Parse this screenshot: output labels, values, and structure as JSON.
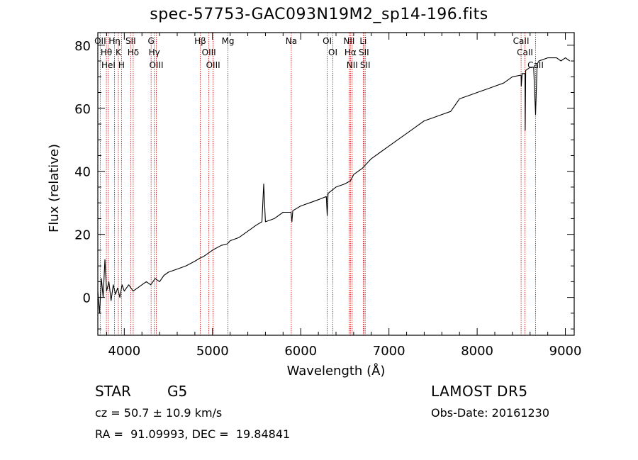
{
  "title": "spec-57753-GAC093N19M2_sp14-196.fits",
  "info": {
    "object_class": "STAR",
    "subclass": "G5",
    "survey": "LAMOST DR5",
    "cz": "cz = 50.7 ± 10.9 km/s",
    "obs_date": "Obs-Date: 20161230",
    "radec": "RA =  91.09993, DEC =  19.84841"
  },
  "colors": {
    "spectrum": "#000000",
    "lines": "#cc0000",
    "axes": "#000000"
  },
  "chart_data": {
    "type": "line",
    "title": "spec-57753-GAC093N19M2_sp14-196.fits",
    "xlabel": "Wavelength (Å)",
    "ylabel": "Flux (relative)",
    "xlim": [
      3700,
      9100
    ],
    "ylim": [
      -12,
      84
    ],
    "xticks": [
      4000,
      5000,
      6000,
      7000,
      8000,
      9000
    ],
    "yticks": [
      0,
      20,
      40,
      60,
      80
    ],
    "grid": false,
    "series": [
      {
        "points": [
          [
            3700,
            2
          ],
          [
            3720,
            -5
          ],
          [
            3740,
            6
          ],
          [
            3760,
            0
          ],
          [
            3780,
            12
          ],
          [
            3800,
            2
          ],
          [
            3825,
            5
          ],
          [
            3850,
            -1
          ],
          [
            3875,
            4
          ],
          [
            3900,
            1
          ],
          [
            3925,
            3
          ],
          [
            3950,
            0
          ],
          [
            3975,
            4
          ],
          [
            4000,
            2
          ],
          [
            4050,
            4
          ],
          [
            4100,
            2
          ],
          [
            4150,
            3
          ],
          [
            4200,
            4
          ],
          [
            4250,
            5
          ],
          [
            4300,
            4
          ],
          [
            4350,
            6
          ],
          [
            4400,
            5
          ],
          [
            4450,
            7
          ],
          [
            4500,
            8
          ],
          [
            4600,
            9
          ],
          [
            4700,
            10
          ],
          [
            4800,
            11.5
          ],
          [
            4860,
            12.5
          ],
          [
            4900,
            13
          ],
          [
            5000,
            15
          ],
          [
            5100,
            16.5
          ],
          [
            5170,
            17
          ],
          [
            5200,
            18
          ],
          [
            5300,
            19
          ],
          [
            5400,
            21
          ],
          [
            5500,
            23
          ],
          [
            5560,
            24
          ],
          [
            5580,
            36
          ],
          [
            5600,
            24
          ],
          [
            5700,
            25
          ],
          [
            5800,
            27
          ],
          [
            5890,
            27
          ],
          [
            5900,
            24
          ],
          [
            5910,
            27.5
          ],
          [
            6000,
            29
          ],
          [
            6100,
            30
          ],
          [
            6200,
            31
          ],
          [
            6290,
            32
          ],
          [
            6300,
            26
          ],
          [
            6310,
            33
          ],
          [
            6400,
            35
          ],
          [
            6500,
            36
          ],
          [
            6563,
            37
          ],
          [
            6600,
            39
          ],
          [
            6700,
            41
          ],
          [
            6800,
            44
          ],
          [
            6900,
            46
          ],
          [
            7000,
            48
          ],
          [
            7100,
            50
          ],
          [
            7200,
            52
          ],
          [
            7300,
            54
          ],
          [
            7400,
            56
          ],
          [
            7500,
            57
          ],
          [
            7600,
            58
          ],
          [
            7700,
            59
          ],
          [
            7750,
            61
          ],
          [
            7800,
            63
          ],
          [
            7900,
            64
          ],
          [
            8000,
            65
          ],
          [
            8100,
            66
          ],
          [
            8200,
            67
          ],
          [
            8300,
            68
          ],
          [
            8400,
            70
          ],
          [
            8498,
            70.5
          ],
          [
            8500,
            67
          ],
          [
            8510,
            71
          ],
          [
            8542,
            71
          ],
          [
            8545,
            53
          ],
          [
            8550,
            72
          ],
          [
            8600,
            73
          ],
          [
            8640,
            73
          ],
          [
            8662,
            58
          ],
          [
            8680,
            74
          ],
          [
            8700,
            75
          ],
          [
            8800,
            76
          ],
          [
            8900,
            76
          ],
          [
            8950,
            75
          ],
          [
            9000,
            76
          ],
          [
            9050,
            75
          ]
        ]
      }
    ],
    "line_markers": [
      {
        "wave": 3727,
        "label": "OII"
      },
      {
        "wave": 3797,
        "label": "Hθ"
      },
      {
        "wave": 3820,
        "label": "HeI"
      },
      {
        "wave": 3889,
        "label": "Hη"
      },
      {
        "wave": 3933,
        "label": "K"
      },
      {
        "wave": 3968,
        "label": "H"
      },
      {
        "wave": 4072,
        "label": "SII"
      },
      {
        "wave": 4101,
        "label": "Hδ"
      },
      {
        "wave": 4304,
        "label": "G"
      },
      {
        "wave": 4340,
        "label": "Hγ"
      },
      {
        "wave": 4363,
        "label": "OIII"
      },
      {
        "wave": 4861,
        "label": "Hβ"
      },
      {
        "wave": 4959,
        "label": "OIII"
      },
      {
        "wave": 5007,
        "label": "OIII"
      },
      {
        "wave": 5175,
        "label": "Mg"
      },
      {
        "wave": 5893,
        "label": "Na"
      },
      {
        "wave": 6300,
        "label": "OI"
      },
      {
        "wave": 6364,
        "label": "OI"
      },
      {
        "wave": 6548,
        "label": "NII"
      },
      {
        "wave": 6563,
        "label": "Hα"
      },
      {
        "wave": 6583,
        "label": "NII"
      },
      {
        "wave": 6708,
        "label": "Li"
      },
      {
        "wave": 6716,
        "label": "SII"
      },
      {
        "wave": 6731,
        "label": "SII"
      },
      {
        "wave": 8498,
        "label": "CaII"
      },
      {
        "wave": 8542,
        "label": "CaII"
      },
      {
        "wave": 8662,
        "label": "CaII"
      }
    ]
  }
}
